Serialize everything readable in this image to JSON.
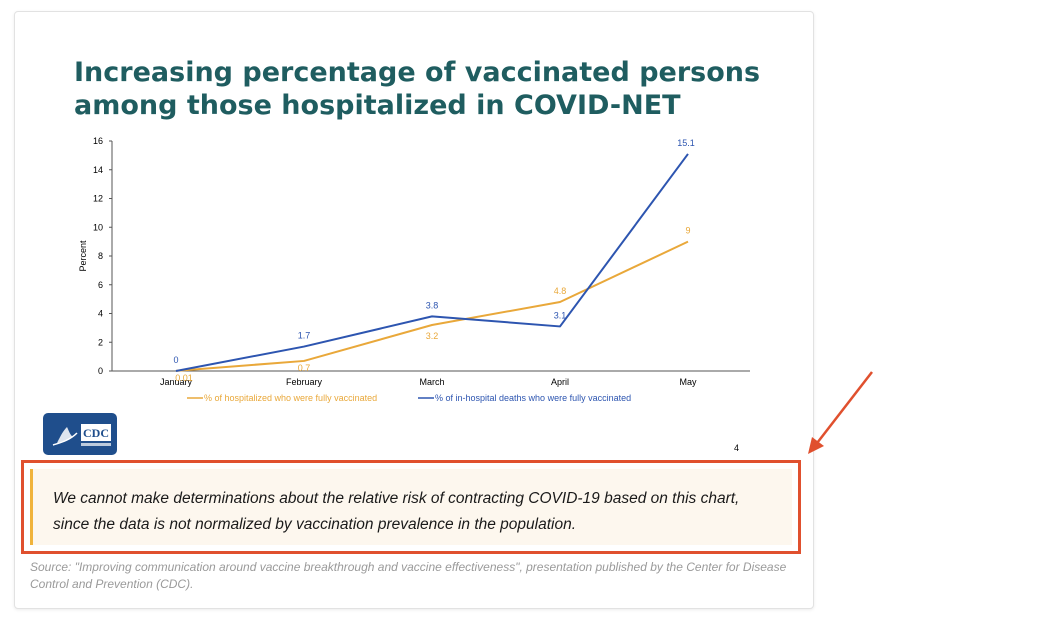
{
  "slide": {
    "title_line1": "Increasing percentage of vaccinated persons",
    "title_line2": "among those hospitalized in COVID-NET",
    "slide_number": "4",
    "logo_text": "CDC"
  },
  "chart_data": {
    "type": "line",
    "ylabel": "Percent",
    "xlabel": "",
    "categories": [
      "January",
      "February",
      "March",
      "April",
      "May"
    ],
    "ylim": [
      0,
      16
    ],
    "yticks": [
      0,
      2,
      4,
      6,
      8,
      10,
      12,
      14,
      16
    ],
    "grid": false,
    "legend_position": "bottom",
    "series": [
      {
        "name": "% of hospitalized who were fully vaccinated",
        "color": "#e9a83a",
        "values": [
          0.01,
          0.7,
          3.2,
          4.8,
          9
        ],
        "labels": [
          "0.01",
          "0.7",
          "3.2",
          "4.8",
          "9"
        ]
      },
      {
        "name": "% of in-hospital deaths who were fully vaccinated",
        "color": "#2d55b0",
        "values": [
          0,
          1.7,
          3.8,
          3.1,
          15.1
        ],
        "labels": [
          "0",
          "1.7",
          "3.8",
          "3.1",
          "15.1"
        ]
      }
    ]
  },
  "callout": {
    "text": "We cannot make determinations about the relative risk of contracting COVID-19 based on this chart, since the data is not normalized by vaccination prevalence in the population."
  },
  "source": {
    "text": "Source: \"Improving communication around vaccine breakthrough and vaccine effectiveness\", presentation published by the Center for Disease Control and Prevention (CDC)."
  },
  "colors": {
    "title": "#1f5d60",
    "callout_border": "#e0502e",
    "callout_accent": "#f0b33b",
    "logo_bg": "#1f4e8c"
  }
}
